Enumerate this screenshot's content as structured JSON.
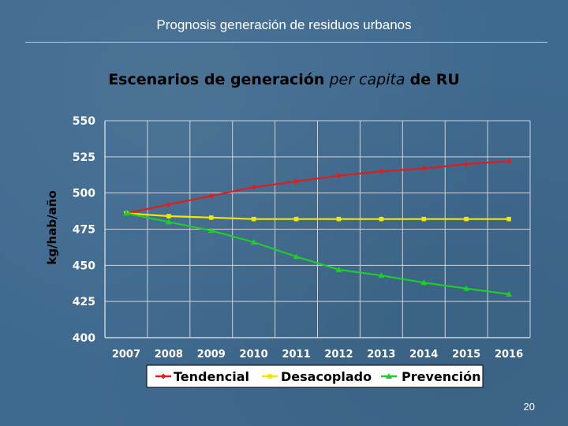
{
  "slide": {
    "title": "Prognosis generación de residuos urbanos",
    "page_number": "20"
  },
  "chart_data": {
    "type": "line",
    "title_main": "Escenarios de generación",
    "title_italic": "per capita",
    "title_end": "de RU",
    "xlabel": "",
    "ylabel": "kg/hab/año",
    "ylim": [
      400,
      550
    ],
    "yticks": [
      400,
      425,
      450,
      475,
      500,
      525,
      550
    ],
    "categories": [
      "2007",
      "2008",
      "2009",
      "2010",
      "2011",
      "2012",
      "2013",
      "2014",
      "2015",
      "2016"
    ],
    "grid": true,
    "legend": "bottom",
    "series": [
      {
        "name": "Tendencial",
        "color": "#dc1e1e",
        "marker": "diamond",
        "values": [
          486,
          492,
          498,
          504,
          508,
          512,
          515,
          517,
          520,
          522
        ]
      },
      {
        "name": "Desacoplado",
        "color": "#f5e600",
        "marker": "square",
        "values": [
          486,
          484,
          483,
          482,
          482,
          482,
          482,
          482,
          482,
          482
        ]
      },
      {
        "name": "Prevención",
        "color": "#1ecd28",
        "marker": "triangle",
        "values": [
          486,
          480,
          474,
          466,
          456,
          447,
          443,
          438,
          434,
          430
        ]
      }
    ]
  }
}
